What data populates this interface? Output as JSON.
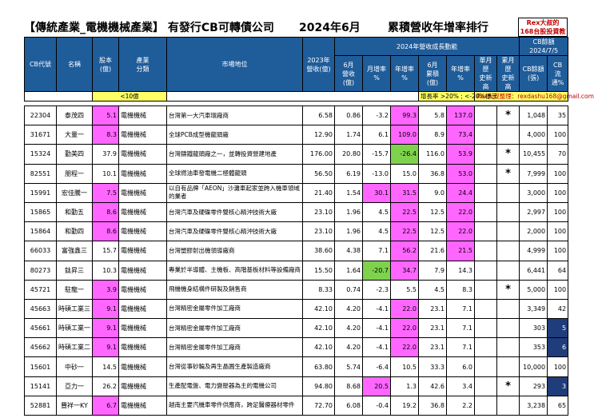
{
  "header": {
    "title": "【傳統產業_電機機械產業】 有發行CB可轉債公司",
    "month": "2024年6月",
    "ranking": "累積營收年增率排行",
    "brand_line1": "Rex大叔的",
    "brand_line2": "168台股投資教室"
  },
  "columns": {
    "cb_code": "CB代號",
    "name": "名稱",
    "capital": "股本\n(億)",
    "industry": "產業\n分類",
    "market": "市場地位",
    "rev2023": "2023年\n營收(億)",
    "group2024": "2024年營收成長動能",
    "jun_rev": "6月\n營收(億)",
    "mom": "月增率\n%",
    "yoy": "年增率\n%",
    "jun_cum": "6月\n累積(億)",
    "cum_yoy": "年增率\n%",
    "high_month": "單月歷\n史新高",
    "high_cum": "累月歷\n史新高",
    "cb_group": "CB餘額",
    "cb_date": "2024/7/5",
    "cb_balance": "CB餘額\n(張)",
    "cb_flow": "CB\n流通%"
  },
  "notes": {
    "capital_note": "<10億",
    "growth_note": "增長率 >20% ; <-20%標示",
    "author_note": "Rex大叔整理：rexdashu168@gmail.com"
  },
  "rows": [
    {
      "code": "22304",
      "name": "泰茂四",
      "capital": "5.1",
      "industry": "電機機械",
      "market": "台灣第一大汽車環廠商",
      "rev2023": "6.58",
      "jun": "0.86",
      "mom": "-3.2",
      "yoy": "99.3",
      "cum": "5.8",
      "cumyoy": "137.0",
      "h1": "",
      "h2": "*",
      "cb": "1,048",
      "flow": "35",
      "capPink": true,
      "momC": "",
      "yoyC": "pink",
      "cumyoyC": "pink",
      "flowC": ""
    },
    {
      "code": "31671",
      "name": "大量一",
      "capital": "8.3",
      "industry": "電機機械",
      "market": "全球PCB成型機龍頭廠",
      "rev2023": "12.90",
      "jun": "1.74",
      "mom": "6.1",
      "yoy": "109.0",
      "cum": "8.9",
      "cumyoy": "73.4",
      "h1": "",
      "h2": "",
      "cb": "4,000",
      "flow": "100",
      "capPink": true,
      "momC": "",
      "yoyC": "pink",
      "cumyoyC": "pink",
      "flowC": ""
    },
    {
      "code": "15324",
      "name": "勤美四",
      "capital": "37.9",
      "industry": "電機機械",
      "market": "台灣鑄鐵龍頭廠之一，並轉投資營建地產",
      "rev2023": "176.00",
      "jun": "20.80",
      "mom": "-15.7",
      "yoy": "-26.4",
      "cum": "116.0",
      "cumyoy": "53.9",
      "h1": "",
      "h2": "*",
      "cb": "10,455",
      "flow": "70",
      "capPink": false,
      "momC": "",
      "yoyC": "green",
      "cumyoyC": "pink",
      "flowC": ""
    },
    {
      "code": "82551",
      "name": "朋程一",
      "capital": "10.1",
      "industry": "電機機械",
      "market": "全球燃油車發電機二極體龍頭",
      "rev2023": "56.50",
      "jun": "6.19",
      "mom": "-13.0",
      "yoy": "15.0",
      "cum": "36.8",
      "cumyoy": "53.0",
      "h1": "",
      "h2": "*",
      "cb": "7,999",
      "flow": "100",
      "capPink": false,
      "momC": "",
      "yoyC": "",
      "cumyoyC": "pink",
      "flowC": ""
    },
    {
      "code": "15991",
      "name": "宏佳騰一",
      "capital": "7.5",
      "industry": "電機機械",
      "market": "以自有品牌「AEON」沙灘車起家並跨入機車領域的業者",
      "rev2023": "21.40",
      "jun": "1.54",
      "mom": "30.1",
      "yoy": "31.5",
      "cum": "9.0",
      "cumyoy": "24.4",
      "h1": "",
      "h2": "",
      "cb": "3,000",
      "flow": "100",
      "capPink": true,
      "momC": "pink",
      "yoyC": "pink",
      "cumyoyC": "pink",
      "flowC": ""
    },
    {
      "code": "15865",
      "name": "和勤五",
      "capital": "8.6",
      "industry": "電機機械",
      "market": "台灣汽車及硬碟零件雙核心精沖技術大廠",
      "rev2023": "23.10",
      "jun": "1.96",
      "mom": "4.5",
      "yoy": "22.5",
      "cum": "12.5",
      "cumyoy": "22.0",
      "h1": "",
      "h2": "",
      "cb": "2,997",
      "flow": "100",
      "capPink": true,
      "momC": "",
      "yoyC": "pink",
      "cumyoyC": "pink",
      "flowC": ""
    },
    {
      "code": "15864",
      "name": "和勤四",
      "capital": "8.6",
      "industry": "電機機械",
      "market": "台灣汽車及硬碟零件雙核心精沖技術大廠",
      "rev2023": "23.10",
      "jun": "1.96",
      "mom": "4.5",
      "yoy": "22.5",
      "cum": "12.5",
      "cumyoy": "22.0",
      "h1": "",
      "h2": "",
      "cb": "2,000",
      "flow": "100",
      "capPink": true,
      "momC": "",
      "yoyC": "pink",
      "cumyoyC": "pink",
      "flowC": ""
    },
    {
      "code": "66033",
      "name": "富強鑫三",
      "capital": "15.7",
      "industry": "電機機械",
      "market": "台灣塑膠射出機領導廠商",
      "rev2023": "38.60",
      "jun": "4.38",
      "mom": "7.1",
      "yoy": "56.2",
      "cum": "21.6",
      "cumyoy": "21.5",
      "h1": "",
      "h2": "",
      "cb": "4,999",
      "flow": "100",
      "capPink": false,
      "momC": "",
      "yoyC": "pink",
      "cumyoyC": "pink",
      "flowC": ""
    },
    {
      "code": "80273",
      "name": "鈦昇三",
      "capital": "10.3",
      "industry": "電機機械",
      "market": "專業於半導體、主機板、高階基板材料等設備廠商",
      "rev2023": "15.50",
      "jun": "1.64",
      "mom": "-20.7",
      "yoy": "34.7",
      "cum": "7.9",
      "cumyoy": "14.3",
      "h1": "",
      "h2": "",
      "cb": "6,441",
      "flow": "64",
      "capPink": false,
      "momC": "green",
      "yoyC": "pink",
      "cumyoyC": "",
      "flowC": ""
    },
    {
      "code": "45721",
      "name": "駐龍一",
      "capital": "3.9",
      "industry": "電機機械",
      "market": "飛機機身結構件研製及銷售商",
      "rev2023": "8.33",
      "jun": "0.74",
      "mom": "-2.3",
      "yoy": "5.5",
      "cum": "4.5",
      "cumyoy": "8.3",
      "h1": "",
      "h2": "*",
      "cb": "5,000",
      "flow": "100",
      "capPink": true,
      "momC": "",
      "yoyC": "",
      "cumyoyC": "",
      "flowC": ""
    },
    {
      "code": "45663",
      "name": "時碩工業三",
      "capital": "9.1",
      "industry": "電機機械",
      "market": "台灣精密金屬零件加工廠商",
      "rev2023": "42.10",
      "jun": "4.20",
      "mom": "-4.1",
      "yoy": "22.0",
      "cum": "23.1",
      "cumyoy": "7.1",
      "h1": "",
      "h2": "",
      "cb": "3,349",
      "flow": "42",
      "capPink": true,
      "momC": "",
      "yoyC": "pink",
      "cumyoyC": "",
      "flowC": ""
    },
    {
      "code": "45661",
      "name": "時碩工業一",
      "capital": "9.1",
      "industry": "電機機械",
      "market": "台灣精密金屬零件加工廠商",
      "rev2023": "42.10",
      "jun": "4.20",
      "mom": "-4.1",
      "yoy": "22.0",
      "cum": "23.1",
      "cumyoy": "7.1",
      "h1": "",
      "h2": "",
      "cb": "303",
      "flow": "5",
      "capPink": true,
      "momC": "",
      "yoyC": "pink",
      "cumyoyC": "",
      "flowC": "navy"
    },
    {
      "code": "45662",
      "name": "時碩工業二",
      "capital": "9.1",
      "industry": "電機機械",
      "market": "台灣精密金屬零件加工廠商",
      "rev2023": "42.10",
      "jun": "4.20",
      "mom": "-4.1",
      "yoy": "22.0",
      "cum": "23.1",
      "cumyoy": "7.1",
      "h1": "",
      "h2": "",
      "cb": "353",
      "flow": "6",
      "capPink": true,
      "momC": "",
      "yoyC": "pink",
      "cumyoyC": "",
      "flowC": "navy"
    },
    {
      "code": "15601",
      "name": "中砂一",
      "capital": "14.5",
      "industry": "電機機械",
      "market": "台灣從事砂輪及再生晶圓生產製造廠商",
      "rev2023": "63.80",
      "jun": "5.74",
      "mom": "-6.4",
      "yoy": "10.5",
      "cum": "33.3",
      "cumyoy": "6.0",
      "h1": "",
      "h2": "",
      "cb": "10,000",
      "flow": "100",
      "capPink": false,
      "momC": "",
      "yoyC": "",
      "cumyoyC": "",
      "flowC": ""
    },
    {
      "code": "15141",
      "name": "亞力一",
      "capital": "26.2",
      "industry": "電機機械",
      "market": "生產配電盤、電力變壓器為主的電機公司",
      "rev2023": "94.80",
      "jun": "8.68",
      "mom": "20.5",
      "yoy": "1.3",
      "cum": "42.6",
      "cumyoy": "3.4",
      "h1": "",
      "h2": "*",
      "cb": "293",
      "flow": "3",
      "capPink": false,
      "momC": "pink",
      "yoyC": "",
      "cumyoyC": "",
      "flowC": "navy"
    },
    {
      "code": "52881",
      "name": "豐祥一KY",
      "capital": "6.7",
      "industry": "電機機械",
      "market": "越南主要汽機車零件供應商，跨足醫療器材零件",
      "rev2023": "72.70",
      "jun": "6.08",
      "mom": "-0.4",
      "yoy": "19.2",
      "cum": "36.8",
      "cumyoy": "2.2",
      "h1": "",
      "h2": "",
      "cb": "3,238",
      "flow": "65",
      "capPink": true,
      "momC": "",
      "yoyC": "",
      "cumyoyC": "",
      "flowC": ""
    }
  ]
}
